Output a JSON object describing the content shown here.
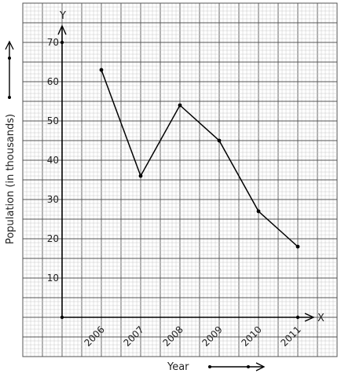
{
  "chart_data": {
    "type": "line",
    "title": "",
    "xlabel": "Year",
    "ylabel": "Population (in thousands)",
    "x_axis_letter": "X",
    "y_axis_letter": "Y",
    "categories": [
      "2006",
      "2007",
      "2008",
      "2009",
      "2010",
      "2011"
    ],
    "series": [
      {
        "values": [
          63,
          36,
          54,
          45,
          27,
          18
        ]
      }
    ],
    "yticks": [
      "10",
      "20",
      "30",
      "40",
      "50",
      "60",
      "70"
    ],
    "ylim": [
      0,
      70
    ],
    "grid": true,
    "grid_style": "graph-paper",
    "line_color": "#000000",
    "grid_color_minor": "#c8c8c8",
    "grid_color_major": "#555555"
  }
}
